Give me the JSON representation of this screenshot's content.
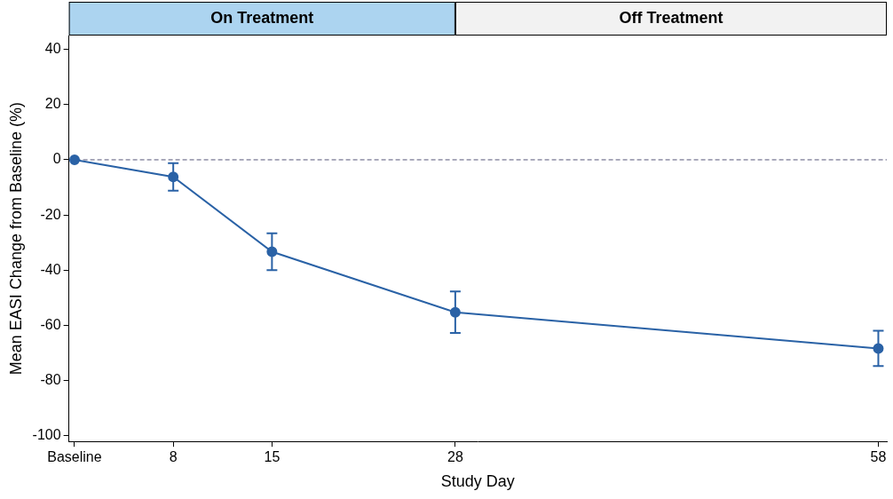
{
  "chart_data": {
    "type": "line",
    "x_label": "Study Day",
    "y_label": "Mean EASI Change from Baseline (%)",
    "x": [
      1,
      8,
      15,
      28,
      58
    ],
    "values": [
      0,
      -6.2,
      -33.3,
      -55.2,
      -68.3
    ],
    "error": [
      0,
      5.0,
      6.7,
      7.5,
      6.4
    ],
    "color": "#2a62a6",
    "marker": "circle",
    "line_style": "solid",
    "xlim": [
      0.6,
      58.6
    ],
    "xticks": [
      {
        "value": 1,
        "label": "Baseline"
      },
      8,
      15,
      28,
      58
    ],
    "ylim": [
      -102,
      45
    ],
    "yticks": [
      -100,
      -80,
      -60,
      -40,
      -20,
      0,
      20,
      40
    ],
    "grid": false,
    "reference_line": 0,
    "phases": [
      {
        "label": "On Treatment",
        "start": 0.6,
        "end": 28,
        "color": "#acd4f0"
      },
      {
        "label": "Off Treatment",
        "start": 28,
        "end": 58.6,
        "color": "#f2f2f2"
      }
    ]
  }
}
